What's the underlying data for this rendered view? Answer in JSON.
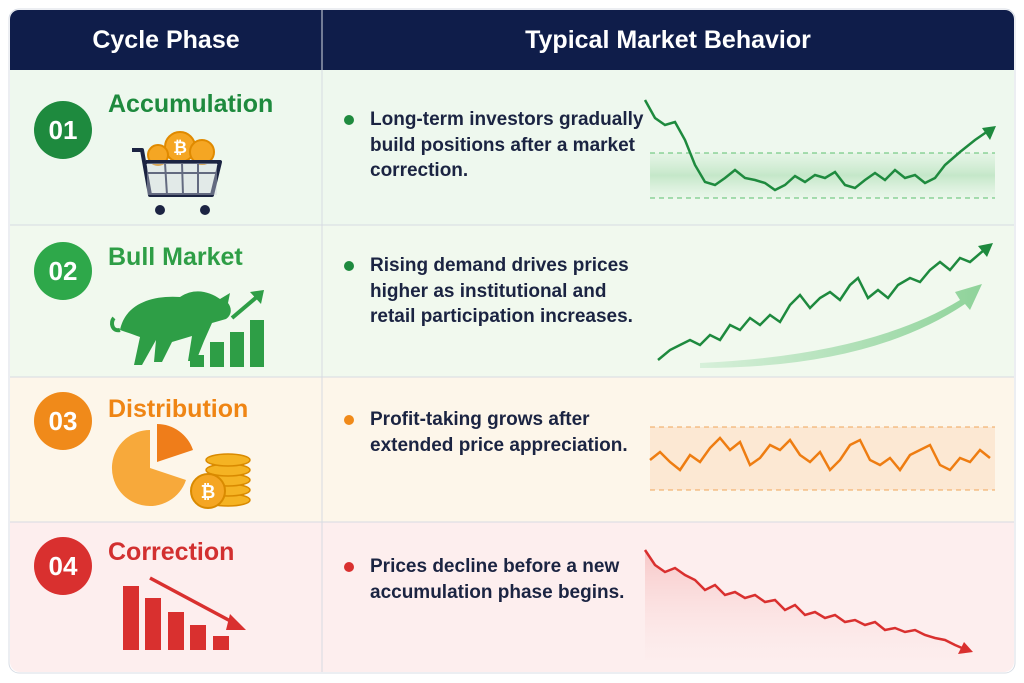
{
  "table": {
    "columns": [
      "Cycle Phase",
      "Typical Market Behavior"
    ],
    "rows": [
      {
        "number": "01",
        "phase": "Accumulation",
        "behavior": "Long-term investors gradually build positions after a market correction."
      },
      {
        "number": "02",
        "phase": "Bull Market",
        "behavior": "Rising demand drives prices higher as institutional and retail participation increases."
      },
      {
        "number": "03",
        "phase": "Distribution",
        "behavior": "Profit-taking grows after extended price appreciation."
      },
      {
        "number": "04",
        "phase": "Correction",
        "behavior": "Prices decline before a new accumulation phase begins."
      }
    ]
  }
}
